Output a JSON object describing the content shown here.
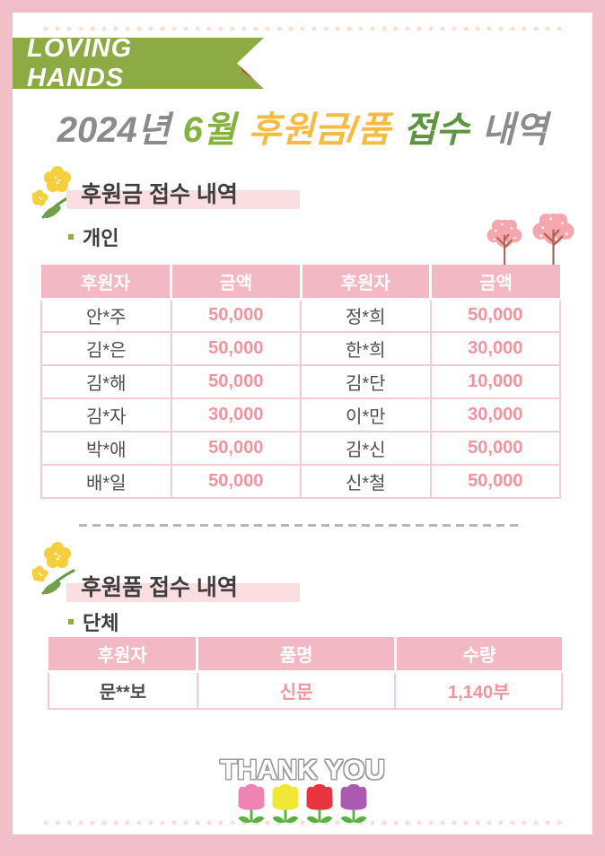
{
  "banner": {
    "brand": "LOVING HANDS"
  },
  "title": {
    "full": "2024년 6월 후원금/품 접수 내역",
    "parts": [
      {
        "text": "2024년",
        "color": "#8b8b8b"
      },
      {
        "text": "6월",
        "color": "#86b23f"
      },
      {
        "text": "후원금/품",
        "color": "#f7bb43"
      },
      {
        "text": "접수",
        "color": "#5d9440"
      },
      {
        "text": "내역",
        "color": "#8b8b8b"
      }
    ]
  },
  "sections": {
    "money": {
      "heading": "후원금 접수 내역",
      "subheading": "개인",
      "table": {
        "headers": [
          "후원자",
          "금액",
          "후원자",
          "금액"
        ],
        "rows": [
          [
            "안*주",
            "50,000",
            "정*희",
            "50,000"
          ],
          [
            "김*은",
            "50,000",
            "한*희",
            "30,000"
          ],
          [
            "김*해",
            "50,000",
            "김*단",
            "10,000"
          ],
          [
            "김*자",
            "30,000",
            "이*만",
            "30,000"
          ],
          [
            "박*애",
            "50,000",
            "김*신",
            "50,000"
          ],
          [
            "배*일",
            "50,000",
            "신*철",
            "50,000"
          ]
        ]
      }
    },
    "goods": {
      "heading": "후원품 접수 내역",
      "subheading": "단체",
      "table": {
        "headers": [
          "후원자",
          "품명",
          "수량"
        ],
        "rows": [
          [
            "문**보",
            "신문",
            "1,140부"
          ]
        ]
      }
    }
  },
  "footer": {
    "thank_you": "THANK YOU"
  },
  "icons": {
    "banner_heart": "heart-icon",
    "section_marker": "flower-icon",
    "table_decor": [
      "tree-icon",
      "tree-icon"
    ],
    "footer_decor": [
      "tulip-icon-pink",
      "tulip-icon-yellow",
      "tulip-icon-red",
      "tulip-icon-purple"
    ]
  },
  "colors": {
    "frame": "#f2bec9",
    "dotted_border": "#fbdcd7",
    "banner_green": "#8cab45",
    "heart_red": "#e53030",
    "heading_text": "#3e3e3e",
    "heading_highlight": "#fbdee2",
    "table_header_bg": "#f2b8c3",
    "table_border": "#f6ccd4",
    "name_text": "#4f4f4f",
    "amount_text": "#f2939e",
    "tree_foliage": "#f5a6ae",
    "tree_trunk": "#ad624d",
    "tulip_pink": "#f083b1",
    "tulip_yellow": "#f2e636",
    "tulip_red": "#e9353f",
    "tulip_purple": "#aa5ab1",
    "stem_green": "#57b33c"
  }
}
